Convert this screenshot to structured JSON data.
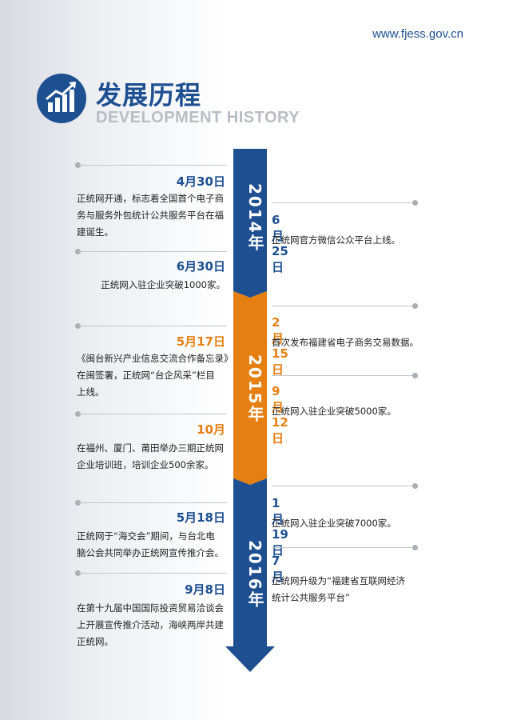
{
  "header": {
    "url": "www.fjess.gov.cn",
    "title": "发展历程",
    "subtitle": "DEVELOPMENT HISTORY"
  },
  "colors": {
    "blue": "#1d4f91",
    "orange": "#e57f12",
    "line": "#c2c5ca"
  },
  "years": [
    {
      "label": "2014年",
      "color": "#1d4f91"
    },
    {
      "label": "2015年",
      "color": "#e57f12"
    },
    {
      "label": "2016年",
      "color": "#1d4f91"
    }
  ],
  "events": [
    {
      "side": "left",
      "date": "4月30日",
      "color": "blue",
      "text": [
        "正统网开通，标志着全国首个电子商",
        "务与服务外包统计公共服务平台在福",
        "建诞生。"
      ]
    },
    {
      "side": "right",
      "date": "6月25日",
      "color": "blue",
      "text": [
        "正统网官方微信公众平台上线。"
      ]
    },
    {
      "side": "left",
      "date": "6月30日",
      "color": "blue",
      "text": [
        "正统网入驻企业突破1000家。"
      ]
    },
    {
      "side": "right",
      "date": "2月15日",
      "color": "orange",
      "text": [
        "首次发布福建省电子商务交易数据。"
      ]
    },
    {
      "side": "left",
      "date": "5月17日",
      "color": "orange",
      "text": [
        "《闽台新兴产业信息交流合作备忘录》",
        "在闽签署，正统网“台企风采”栏目",
        "上线。"
      ]
    },
    {
      "side": "right",
      "date": "9月12日",
      "color": "orange",
      "text": [
        "正统网入驻企业突破5000家。"
      ]
    },
    {
      "side": "left",
      "date": "10月",
      "color": "orange",
      "text": [
        "在福州、厦门、莆田举办三期正统网",
        "企业培训班，培训企业500余家。"
      ]
    },
    {
      "side": "right",
      "date": "1月19日",
      "color": "blue",
      "text": [
        "正统网入驻企业突破7000家。"
      ]
    },
    {
      "side": "left",
      "date": "5月18日",
      "color": "blue",
      "text": [
        "正统网于“海交会”期间，与台北电",
        "脑公会共同举办正统网宣传推介会。"
      ]
    },
    {
      "side": "right",
      "date": "7月",
      "color": "blue",
      "text": [
        "正统网升级为“福建省互联网经济",
        "统计公共服务平台”"
      ]
    },
    {
      "side": "left",
      "date": "9月8日",
      "color": "blue",
      "text": [
        "在第十九届中国国际投资贸易洽谈会",
        "上开展宣传推介活动，海峡两岸共建",
        "正统网。"
      ]
    }
  ]
}
